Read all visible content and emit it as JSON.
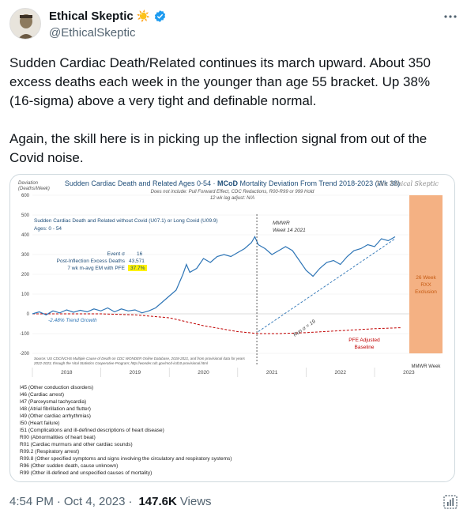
{
  "user": {
    "name": "Ethical Skeptic",
    "emoji": "☀️",
    "handle": "@EthicalSkeptic"
  },
  "tweet": {
    "paragraph1": "Sudden Cardiac Death/Related continues its march upward. About 350 excess deaths each week in the younger than age 55 bracket.  Up 38% (16-sigma) above a very tight and definable normal.",
    "paragraph2": "Again, the skill here is in picking up the inflection signal from out of the Covid noise."
  },
  "footer": {
    "time": "4:54 PM",
    "date": "Oct 4, 2023",
    "views": "147.6K",
    "views_label": "Views"
  },
  "chart": {
    "title_a": "Sudden Cardiac Death and Related Ages 0-54 · ",
    "title_b": "MCoD",
    "title_c": " Mortality Deviation From Trend  2018-2023 (Wk 38)",
    "subtitle1": "Does not include: Pull Forward Effect, CDC Redactions, R00-R99 or 999 Hold",
    "subtitle2": "12 wk lag adjust: N/A",
    "brand": "The Ethical Skeptic",
    "deviation_label": "Deviation\n(Deaths/Week)",
    "series_label": "Sudden Cardiac Death and Related without Covid (U07.1) or Long Covid (U09.9)",
    "ages_label": "Ages: 0 - 54",
    "event_label": "Event σ",
    "event_value": "16",
    "excess_label": "Post-Inflection Excess Deaths",
    "excess_value": "43,571",
    "avg_label": "7 wk m-avg EM with PFE",
    "avg_value": "37.7%",
    "mmwr_line1": "MMWR",
    "mmwr_line2": "Week 14 2021",
    "trend_label": "-2.48% Trend Growth",
    "run_label": "Run σ = 19",
    "pfe_line1": "PFE Adjusted",
    "pfe_line2": "Baseline",
    "exclusion_line1": "26 Week",
    "exclusion_line2": "RXX",
    "exclusion_line3": "Exclusion",
    "mmwr_week_label": "MMWR Week",
    "source_line1": "Source: US CDC/NCHS Multiple Cause of Death on CDC WONDER Online Database, 2018-2021, and from provisional data for years",
    "source_line2": "2022-2023, through the Vital Statistics Cooperative Program; http://wonder.cdc.gov/mcd-icd10-provisional.html",
    "y_ticks": [
      "600",
      "500",
      "400",
      "300",
      "200",
      "100",
      "0",
      "-100",
      "-200"
    ],
    "x_ticks": [
      "2018",
      "2019",
      "2020",
      "2021",
      "2022",
      "2023"
    ]
  },
  "codes": [
    "I45 (Other conduction disorders)",
    "I46 (Cardiac arrest)",
    "I47 (Paroxysmal tachycardia)",
    "I48 (Atrial fibrillation and flutter)",
    "I49 (Other cardiac arrhythmias)",
    "I50 (Heart failure)",
    "I51 (Complications and ill-defined descriptions of heart disease)",
    "R00 (Abnormalities of heart beat)",
    "R01 (Cardiac murmurs and other cardiac sounds)",
    "R09.2 (Respiratory arrest)",
    "R09.8 (Other specified symptoms and signs involving the circulatory and respiratory systems)",
    "R96 (Other sudden death, cause unknown)",
    "R99 (Other ill-defined and unspecified causes of mortality)"
  ],
  "colors": {
    "series": "#2e75b6",
    "baseline": "#c00000",
    "exclusion": "#f4b183",
    "verified": "#1d9bf0"
  },
  "icons": {
    "verified": "verified-badge-icon",
    "sun": "sun-emoji-icon",
    "more": "more-options-icon",
    "analytics": "analytics-icon"
  },
  "chart_data": {
    "type": "line",
    "title": "Sudden Cardiac Death and Related Ages 0-54 · MCoD Mortality Deviation From Trend 2018-2023 (Wk 38)",
    "ylabel": "Deviation (Deaths/Week)",
    "ylim": [
      -200,
      600
    ],
    "x_categories": [
      "2018",
      "2019",
      "2020",
      "2021",
      "2022",
      "2023"
    ],
    "series": [
      {
        "name": "Sudden Cardiac Death and Related without Covid (U07.1) or Long Covid (U09.9)",
        "points": [
          [
            2018.0,
            0
          ],
          [
            2018.1,
            10
          ],
          [
            2018.2,
            -5
          ],
          [
            2018.3,
            15
          ],
          [
            2018.4,
            5
          ],
          [
            2018.5,
            20
          ],
          [
            2018.6,
            8
          ],
          [
            2018.7,
            18
          ],
          [
            2018.8,
            10
          ],
          [
            2018.9,
            25
          ],
          [
            2019.0,
            15
          ],
          [
            2019.1,
            30
          ],
          [
            2019.2,
            10
          ],
          [
            2019.3,
            25
          ],
          [
            2019.4,
            15
          ],
          [
            2019.5,
            20
          ],
          [
            2019.6,
            5
          ],
          [
            2019.7,
            15
          ],
          [
            2019.8,
            30
          ],
          [
            2019.9,
            60
          ],
          [
            2020.0,
            90
          ],
          [
            2020.1,
            120
          ],
          [
            2020.2,
            200
          ],
          [
            2020.25,
            250
          ],
          [
            2020.3,
            210
          ],
          [
            2020.4,
            230
          ],
          [
            2020.5,
            280
          ],
          [
            2020.6,
            260
          ],
          [
            2020.7,
            290
          ],
          [
            2020.8,
            300
          ],
          [
            2020.9,
            290
          ],
          [
            2021.0,
            310
          ],
          [
            2021.1,
            330
          ],
          [
            2021.2,
            360
          ],
          [
            2021.25,
            390
          ],
          [
            2021.3,
            350
          ],
          [
            2021.4,
            330
          ],
          [
            2021.5,
            300
          ],
          [
            2021.6,
            320
          ],
          [
            2021.7,
            340
          ],
          [
            2021.8,
            320
          ],
          [
            2021.9,
            270
          ],
          [
            2022.0,
            220
          ],
          [
            2022.1,
            190
          ],
          [
            2022.2,
            230
          ],
          [
            2022.3,
            260
          ],
          [
            2022.4,
            270
          ],
          [
            2022.5,
            250
          ],
          [
            2022.6,
            290
          ],
          [
            2022.7,
            320
          ],
          [
            2022.8,
            330
          ],
          [
            2022.9,
            350
          ],
          [
            2023.0,
            340
          ],
          [
            2023.1,
            380
          ],
          [
            2023.2,
            370
          ],
          [
            2023.3,
            390
          ]
        ]
      },
      {
        "name": "PFE Adjusted Baseline",
        "points": [
          [
            2018.0,
            0
          ],
          [
            2019.0,
            0
          ],
          [
            2019.5,
            -5
          ],
          [
            2020.0,
            -20
          ],
          [
            2020.5,
            -60
          ],
          [
            2021.0,
            -90
          ],
          [
            2021.3,
            -100
          ],
          [
            2021.6,
            -100
          ],
          [
            2022.0,
            -95
          ],
          [
            2022.5,
            -85
          ],
          [
            2023.0,
            -75
          ],
          [
            2023.4,
            -70
          ]
        ]
      },
      {
        "name": "Run trend",
        "points": [
          [
            2021.3,
            -90
          ],
          [
            2023.3,
            380
          ]
        ]
      }
    ]
  }
}
